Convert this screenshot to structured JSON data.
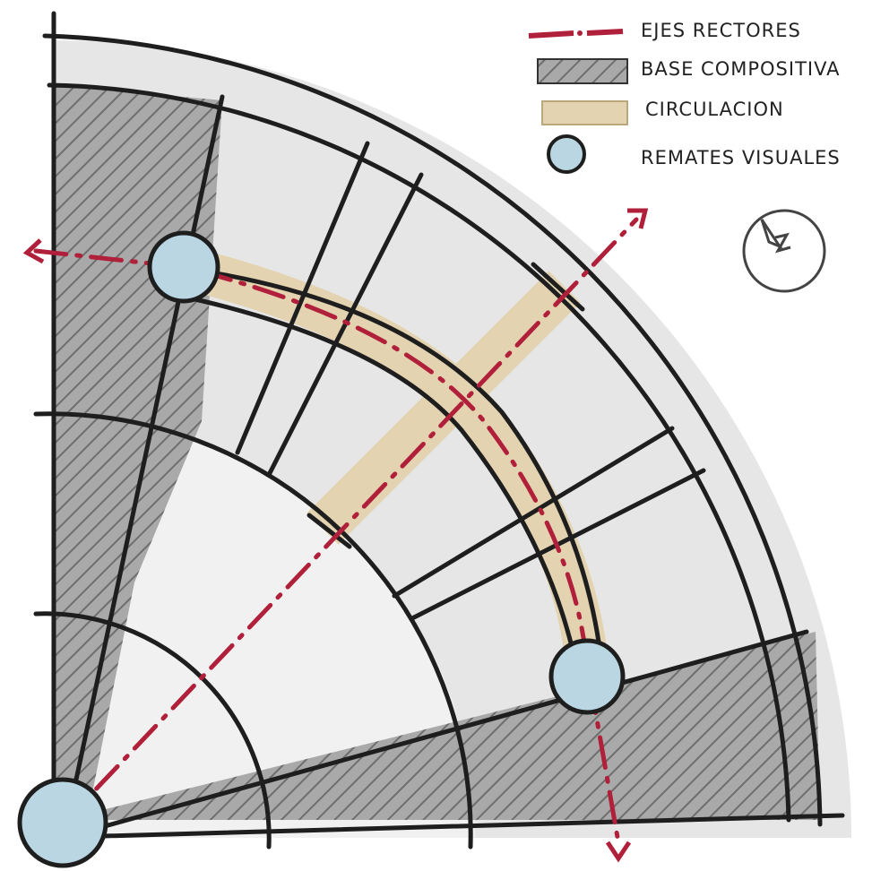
{
  "legend": {
    "items": [
      {
        "label": "EJES RECTORES"
      },
      {
        "label": "BASE COMPOSITIVA"
      },
      {
        "label": "CIRCULACION"
      },
      {
        "label": "REMATES VISUALES"
      }
    ]
  }
}
